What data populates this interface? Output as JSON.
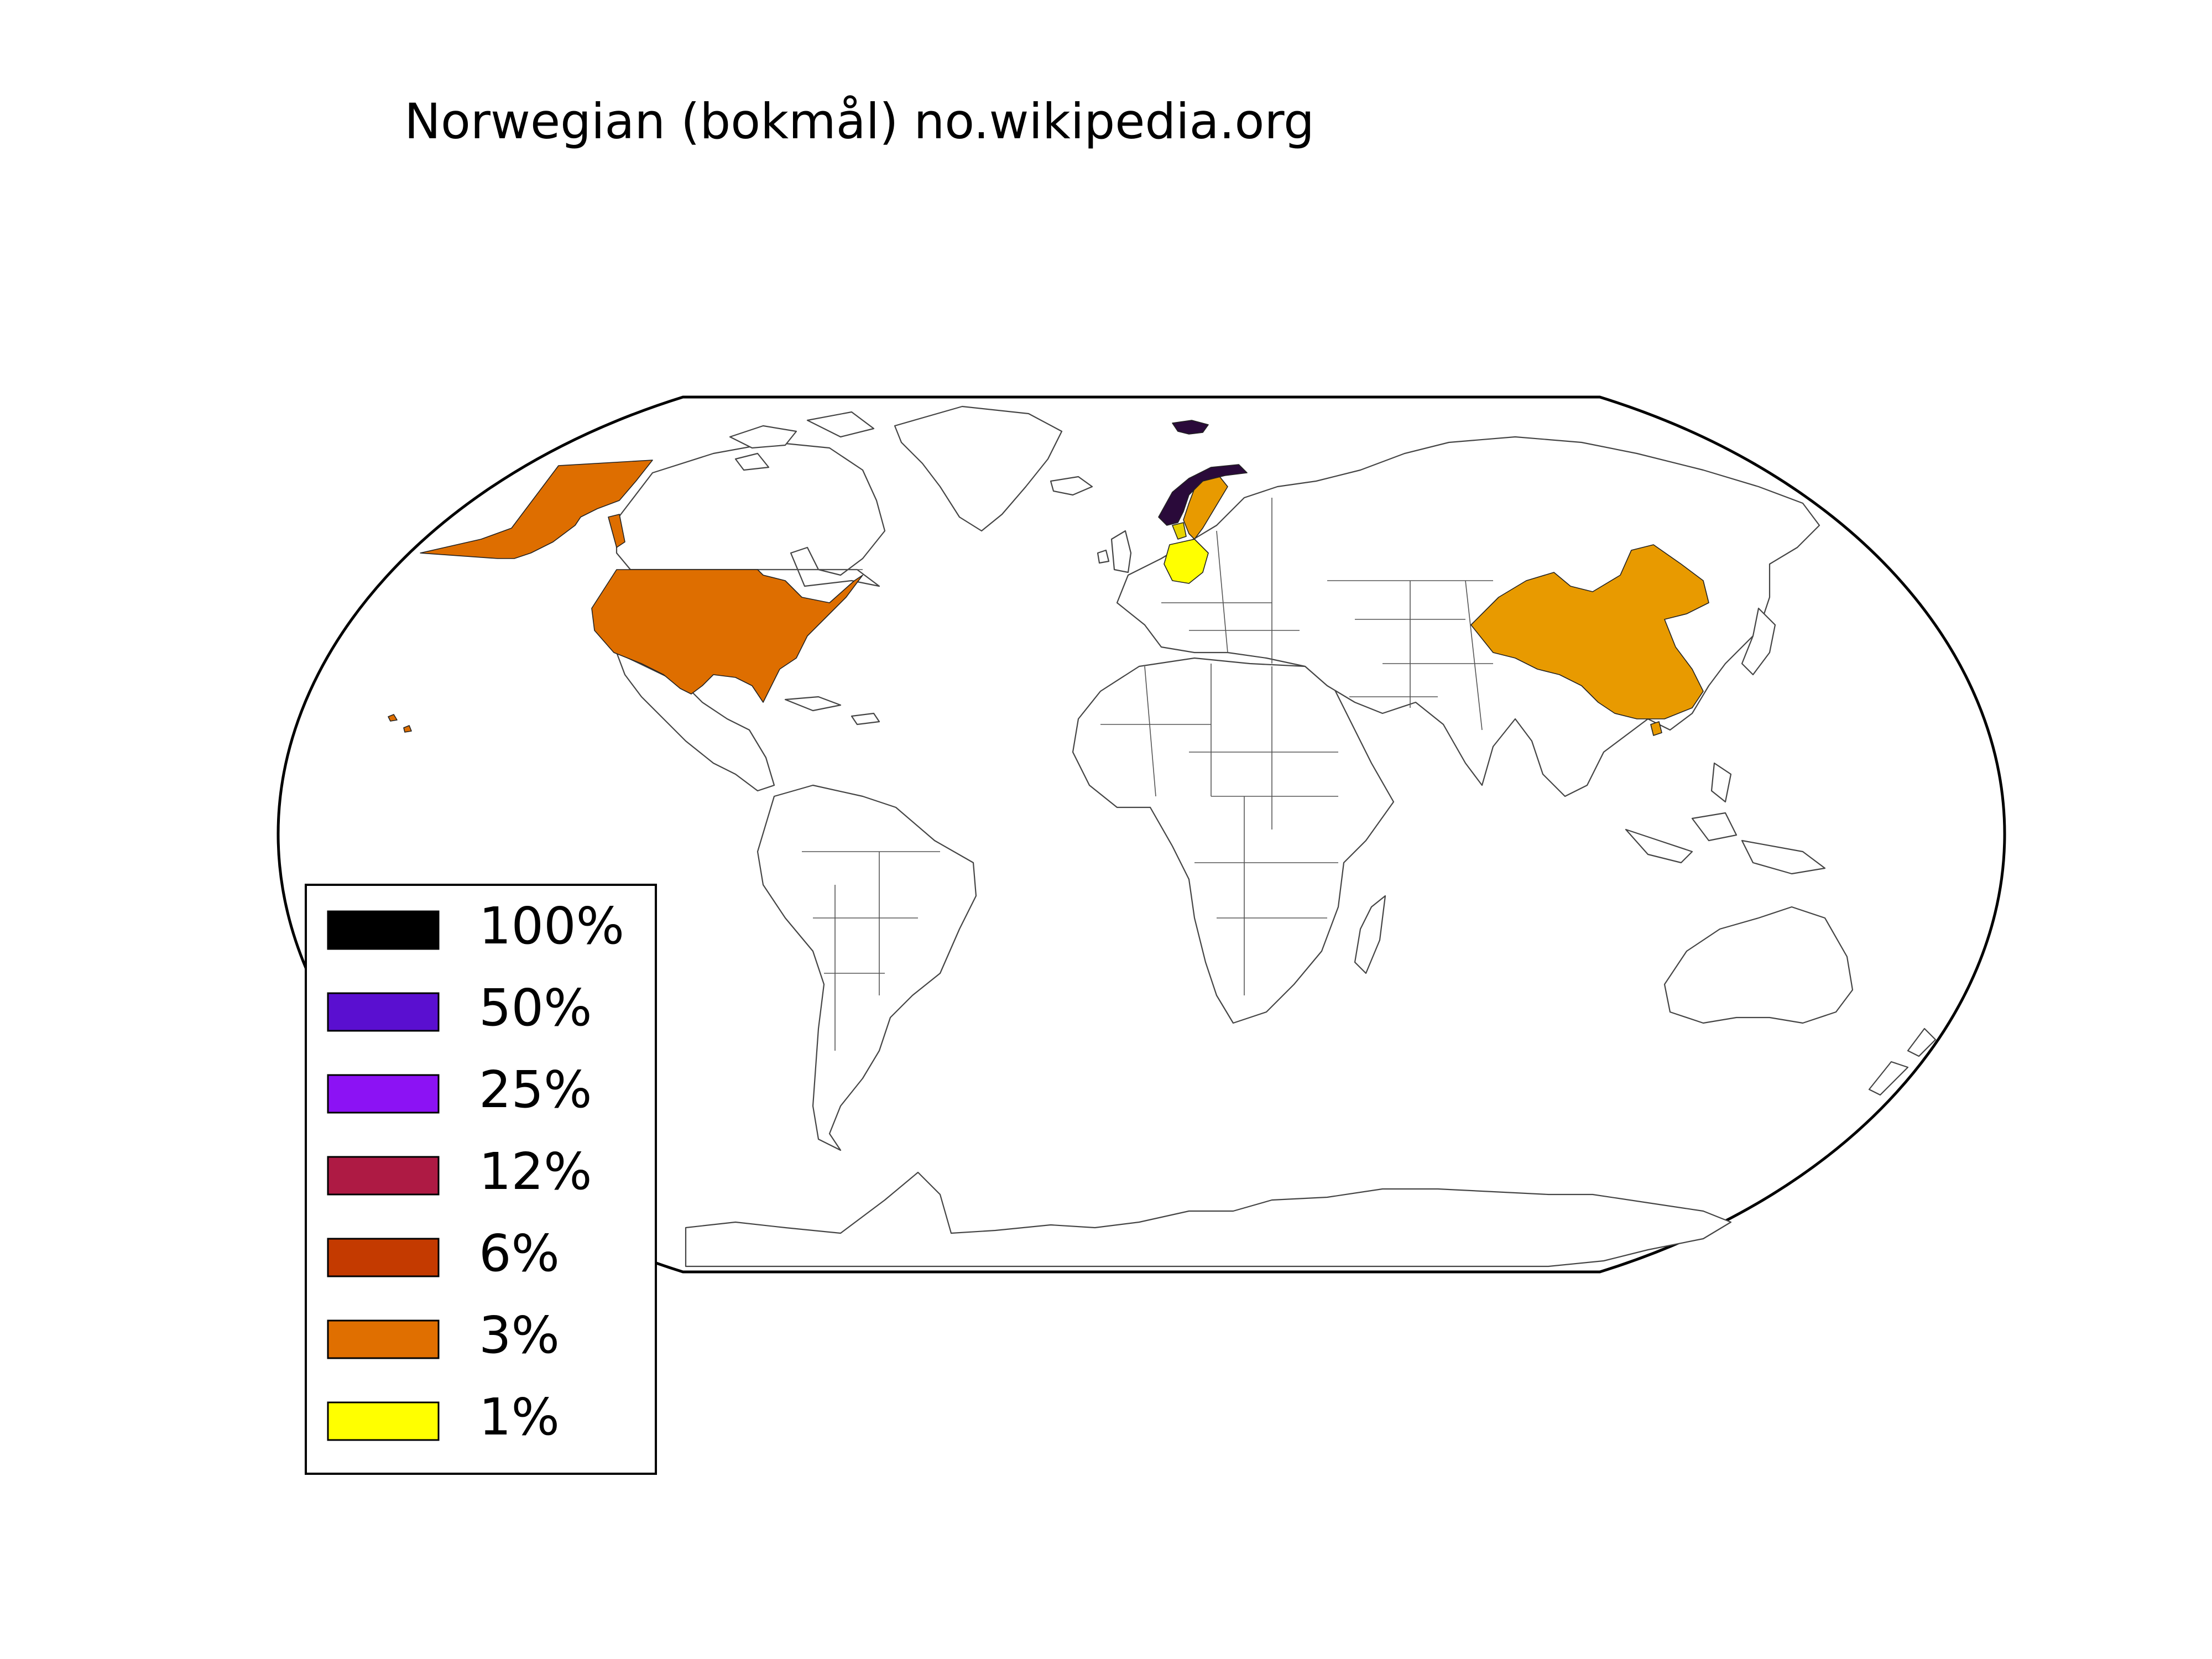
{
  "title": "Norwegian (bokmål) no.wikipedia.org",
  "legend": [
    {
      "label": "100%",
      "color": "#000000"
    },
    {
      "label": "50%",
      "color": "#5a0fd0"
    },
    {
      "label": "25%",
      "color": "#8c12f4"
    },
    {
      "label": "12%",
      "color": "#ae1a44"
    },
    {
      "label": "6%",
      "color": "#c43a00"
    },
    {
      "label": "3%",
      "color": "#e06f00"
    },
    {
      "label": "1%",
      "color": "#ffff00"
    }
  ],
  "highlighted_countries": [
    {
      "name": "Norway",
      "color": "#2a0a3a"
    },
    {
      "name": "Svalbard",
      "color": "#2a0a3a"
    },
    {
      "name": "Sweden",
      "color": "#e89a00"
    },
    {
      "name": "Germany",
      "color": "#ffff00"
    },
    {
      "name": "Denmark",
      "color": "#e8d400"
    },
    {
      "name": "United States",
      "color": "#de6e00"
    },
    {
      "name": "China",
      "color": "#e89a00"
    }
  ]
}
